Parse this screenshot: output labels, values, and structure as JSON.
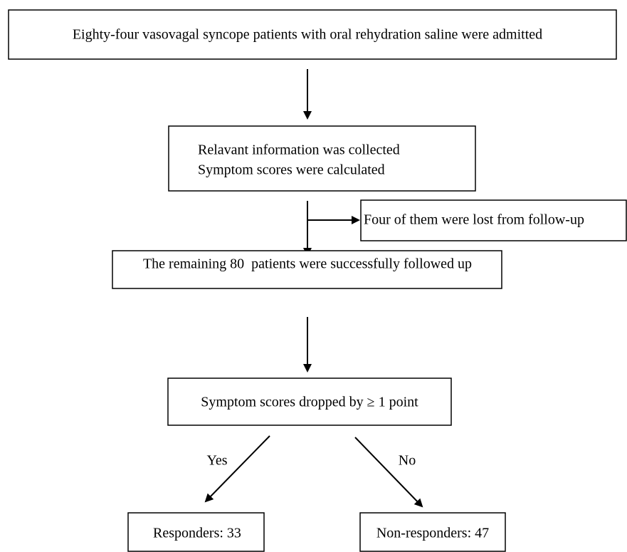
{
  "nodes": [
    {
      "label": "Eighty-four vasovagal syncope patients with oral rehydration saline were admitted"
    },
    {
      "lines": [
        "Relavant information was collected",
        "Symptom scores were calculated"
      ]
    },
    {
      "label": "Four of them were lost from follow-up"
    },
    {
      "label": "The remaining 80  patients were successfully followed up"
    },
    {
      "label": "Symptom scores dropped by ≥ 1 point"
    },
    {
      "label": "Responders: 33"
    },
    {
      "label": "Non-responders: 47"
    }
  ],
  "edges": [
    {
      "label": "Yes"
    },
    {
      "label": "No"
    }
  ]
}
